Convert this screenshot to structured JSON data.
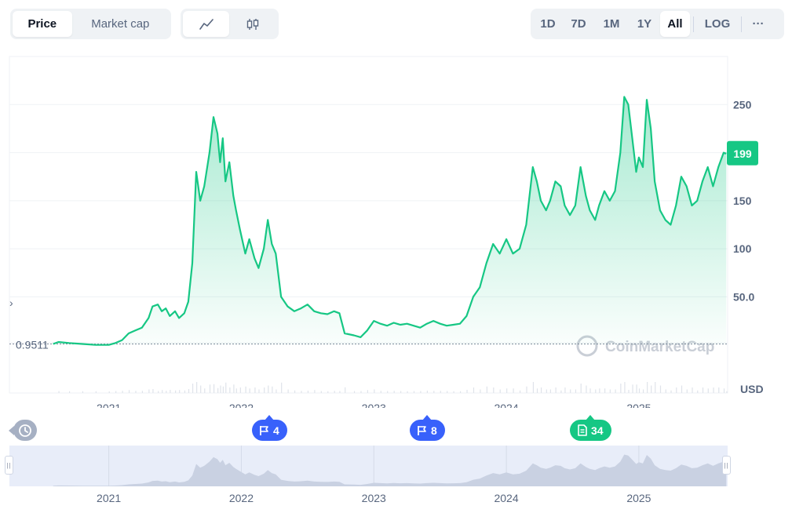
{
  "toolbar": {
    "type_tabs": [
      "Price",
      "Market cap"
    ],
    "active_type": "Price",
    "range_tabs": [
      "1D",
      "7D",
      "1M",
      "1Y",
      "All"
    ],
    "active_range": "All",
    "log_label": "LOG",
    "more_label": "···"
  },
  "colors": {
    "line": "#16c784",
    "accent_blue": "#3861fb",
    "grid": "#eff2f5",
    "axis_text": "#58667e"
  },
  "chart_data": {
    "type": "area",
    "title": "",
    "ylabel": "",
    "currency_label": "USD",
    "watermark": "CoinMarketCap",
    "y_ticks": [
      {
        "value": 250,
        "label": "250"
      },
      {
        "value": 200,
        "label": ""
      },
      {
        "value": 150,
        "label": "150"
      },
      {
        "value": 100,
        "label": "100"
      },
      {
        "value": 50,
        "label": "50.0"
      }
    ],
    "ylim": [
      -50,
      300
    ],
    "x_ticks": [
      {
        "value": 2021.0,
        "label": "2021"
      },
      {
        "value": 2022.0,
        "label": "2022"
      },
      {
        "value": 2023.0,
        "label": "2023"
      },
      {
        "value": 2024.0,
        "label": "2024"
      },
      {
        "value": 2025.0,
        "label": "2025"
      }
    ],
    "xlim": [
      2020.25,
      2025.67
    ],
    "start_price_label": "0.9511",
    "start_price_value": 1,
    "current_price_label": "199",
    "current_price_value": 199,
    "grid": true,
    "series": [
      {
        "values": [
          [
            2020.58,
            1
          ],
          [
            2020.62,
            3
          ],
          [
            2020.7,
            2
          ],
          [
            2020.8,
            1
          ],
          [
            2020.9,
            0
          ],
          [
            2021.0,
            0
          ],
          [
            2021.05,
            2
          ],
          [
            2021.1,
            5
          ],
          [
            2021.15,
            12
          ],
          [
            2021.2,
            15
          ],
          [
            2021.25,
            18
          ],
          [
            2021.3,
            28
          ],
          [
            2021.33,
            40
          ],
          [
            2021.37,
            42
          ],
          [
            2021.4,
            35
          ],
          [
            2021.43,
            38
          ],
          [
            2021.46,
            30
          ],
          [
            2021.5,
            35
          ],
          [
            2021.53,
            28
          ],
          [
            2021.57,
            33
          ],
          [
            2021.6,
            45
          ],
          [
            2021.63,
            85
          ],
          [
            2021.66,
            180
          ],
          [
            2021.69,
            150
          ],
          [
            2021.72,
            165
          ],
          [
            2021.76,
            200
          ],
          [
            2021.79,
            237
          ],
          [
            2021.82,
            220
          ],
          [
            2021.84,
            190
          ],
          [
            2021.86,
            215
          ],
          [
            2021.88,
            170
          ],
          [
            2021.91,
            190
          ],
          [
            2021.94,
            155
          ],
          [
            2021.96,
            140
          ],
          [
            2021.99,
            120
          ],
          [
            2022.03,
            95
          ],
          [
            2022.06,
            110
          ],
          [
            2022.1,
            90
          ],
          [
            2022.13,
            80
          ],
          [
            2022.17,
            100
          ],
          [
            2022.2,
            130
          ],
          [
            2022.23,
            105
          ],
          [
            2022.26,
            95
          ],
          [
            2022.3,
            50
          ],
          [
            2022.35,
            40
          ],
          [
            2022.4,
            35
          ],
          [
            2022.45,
            38
          ],
          [
            2022.5,
            42
          ],
          [
            2022.55,
            35
          ],
          [
            2022.6,
            33
          ],
          [
            2022.65,
            32
          ],
          [
            2022.7,
            35
          ],
          [
            2022.74,
            33
          ],
          [
            2022.78,
            12
          ],
          [
            2022.85,
            10
          ],
          [
            2022.9,
            8
          ],
          [
            2022.95,
            15
          ],
          [
            2023.0,
            25
          ],
          [
            2023.05,
            22
          ],
          [
            2023.1,
            20
          ],
          [
            2023.15,
            23
          ],
          [
            2023.2,
            21
          ],
          [
            2023.25,
            22
          ],
          [
            2023.3,
            20
          ],
          [
            2023.35,
            18
          ],
          [
            2023.4,
            22
          ],
          [
            2023.45,
            25
          ],
          [
            2023.5,
            22
          ],
          [
            2023.55,
            20
          ],
          [
            2023.6,
            21
          ],
          [
            2023.65,
            22
          ],
          [
            2023.7,
            30
          ],
          [
            2023.75,
            50
          ],
          [
            2023.8,
            60
          ],
          [
            2023.85,
            85
          ],
          [
            2023.9,
            105
          ],
          [
            2023.95,
            95
          ],
          [
            2024.0,
            110
          ],
          [
            2024.05,
            95
          ],
          [
            2024.1,
            100
          ],
          [
            2024.15,
            125
          ],
          [
            2024.2,
            185
          ],
          [
            2024.23,
            170
          ],
          [
            2024.26,
            150
          ],
          [
            2024.3,
            140
          ],
          [
            2024.33,
            150
          ],
          [
            2024.37,
            170
          ],
          [
            2024.41,
            165
          ],
          [
            2024.44,
            145
          ],
          [
            2024.48,
            135
          ],
          [
            2024.52,
            145
          ],
          [
            2024.56,
            185
          ],
          [
            2024.6,
            155
          ],
          [
            2024.63,
            140
          ],
          [
            2024.67,
            130
          ],
          [
            2024.7,
            145
          ],
          [
            2024.74,
            160
          ],
          [
            2024.78,
            150
          ],
          [
            2024.82,
            160
          ],
          [
            2024.86,
            200
          ],
          [
            2024.89,
            258
          ],
          [
            2024.92,
            250
          ],
          [
            2024.95,
            215
          ],
          [
            2024.98,
            180
          ],
          [
            2025.0,
            195
          ],
          [
            2025.03,
            185
          ],
          [
            2025.06,
            255
          ],
          [
            2025.09,
            225
          ],
          [
            2025.12,
            170
          ],
          [
            2025.16,
            140
          ],
          [
            2025.2,
            130
          ],
          [
            2025.24,
            125
          ],
          [
            2025.28,
            145
          ],
          [
            2025.32,
            175
          ],
          [
            2025.36,
            165
          ],
          [
            2025.4,
            145
          ],
          [
            2025.44,
            150
          ],
          [
            2025.48,
            170
          ],
          [
            2025.52,
            185
          ],
          [
            2025.56,
            165
          ],
          [
            2025.6,
            185
          ],
          [
            2025.64,
            200
          ],
          [
            2025.66,
            199
          ]
        ]
      }
    ],
    "events": [
      {
        "kind": "flag",
        "count": "4",
        "x": 2022.22
      },
      {
        "kind": "flag",
        "count": "8",
        "x": 2023.45
      },
      {
        "kind": "document",
        "count": "34",
        "x": 2024.65
      }
    ],
    "navigator_ticks": [
      "2021",
      "2022",
      "2023",
      "2024",
      "2025"
    ]
  }
}
